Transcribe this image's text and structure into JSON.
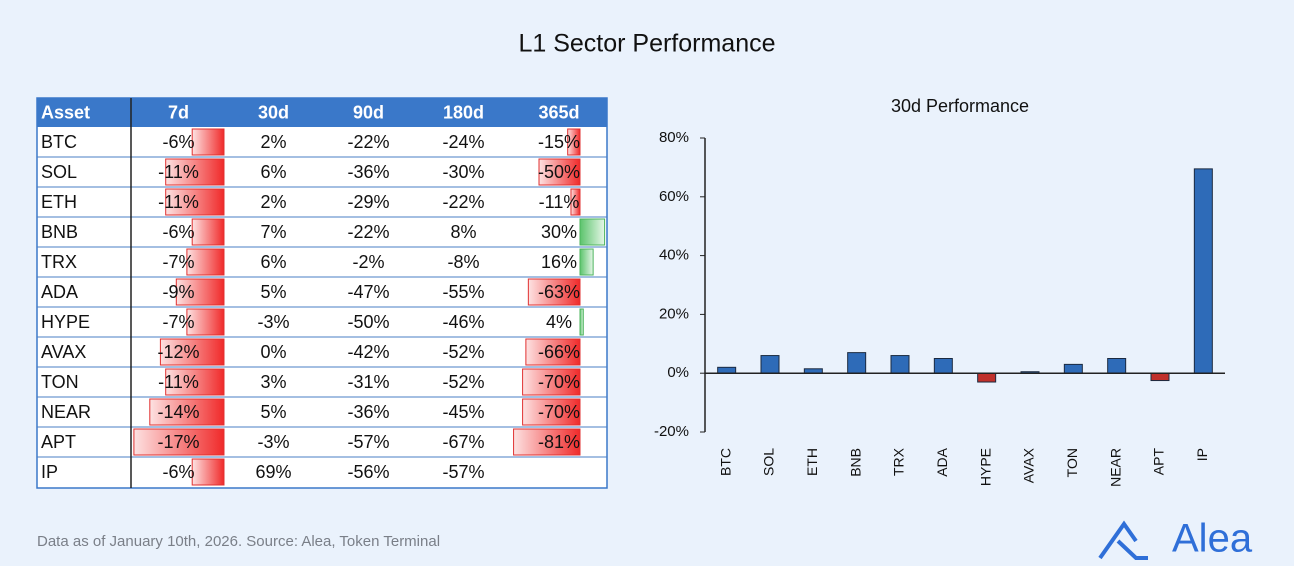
{
  "title": "L1 Sector Performance",
  "table": {
    "columns": [
      "Asset",
      "7d",
      "30d",
      "90d",
      "180d",
      "365d"
    ],
    "rows": [
      {
        "asset": "BTC",
        "values": [
          -6,
          2,
          -22,
          -24,
          -15
        ],
        "labels": [
          "-6%",
          "2%",
          "-22%",
          "-24%",
          "-15%"
        ]
      },
      {
        "asset": "SOL",
        "values": [
          -11,
          6,
          -36,
          -30,
          -50
        ],
        "labels": [
          "-11%",
          "6%",
          "-36%",
          "-30%",
          "-50%"
        ]
      },
      {
        "asset": "ETH",
        "values": [
          -11,
          2,
          -29,
          -22,
          -11
        ],
        "labels": [
          "-11%",
          "2%",
          "-29%",
          "-22%",
          "-11%"
        ]
      },
      {
        "asset": "BNB",
        "values": [
          -6,
          7,
          -22,
          8,
          30
        ],
        "labels": [
          "-6%",
          "7%",
          "-22%",
          "8%",
          "30%"
        ]
      },
      {
        "asset": "TRX",
        "values": [
          -7,
          6,
          -2,
          -8,
          16
        ],
        "labels": [
          "-7%",
          "6%",
          "-2%",
          "-8%",
          "16%"
        ]
      },
      {
        "asset": "ADA",
        "values": [
          -9,
          5,
          -47,
          -55,
          -63
        ],
        "labels": [
          "-9%",
          "5%",
          "-47%",
          "-55%",
          "-63%"
        ]
      },
      {
        "asset": "HYPE",
        "values": [
          -7,
          -3,
          -50,
          -46,
          4
        ],
        "labels": [
          "-7%",
          "-3%",
          "-50%",
          "-46%",
          "4%"
        ]
      },
      {
        "asset": "AVAX",
        "values": [
          -12,
          0,
          -42,
          -52,
          -66
        ],
        "labels": [
          "-12%",
          "0%",
          "-42%",
          "-52%",
          "-66%"
        ]
      },
      {
        "asset": "TON",
        "values": [
          -11,
          3,
          -31,
          -52,
          -70
        ],
        "labels": [
          "-11%",
          "3%",
          "-31%",
          "-52%",
          "-70%"
        ]
      },
      {
        "asset": "NEAR",
        "values": [
          -14,
          5,
          -36,
          -45,
          -70
        ],
        "labels": [
          "-14%",
          "5%",
          "-36%",
          "-45%",
          "-70%"
        ]
      },
      {
        "asset": "APT",
        "values": [
          -17,
          -3,
          -57,
          -67,
          -81
        ],
        "labels": [
          "-17%",
          "-3%",
          "-57%",
          "-67%",
          "-81%"
        ]
      },
      {
        "asset": "IP",
        "values": [
          -6,
          69,
          -56,
          -57,
          null
        ],
        "labels": [
          "-6%",
          "69%",
          "-56%",
          "-57%",
          null
        ]
      }
    ]
  },
  "chart_data": {
    "type": "bar",
    "title": "30d Performance",
    "categories": [
      "BTC",
      "SOL",
      "ETH",
      "BNB",
      "TRX",
      "ADA",
      "HYPE",
      "AVAX",
      "TON",
      "NEAR",
      "APT",
      "IP"
    ],
    "values": [
      2,
      6,
      1.5,
      7,
      6,
      5,
      -3,
      0.5,
      3,
      5,
      -2.5,
      69.5
    ],
    "color": "#2e6bb8",
    "negative_color": "#c0302b",
    "ylim": [
      -20,
      80
    ],
    "yticks": [
      {
        "value": -20,
        "label": "-20%"
      },
      {
        "value": 0,
        "label": "0%"
      },
      {
        "value": 20,
        "label": "20%"
      },
      {
        "value": 40,
        "label": "40%"
      },
      {
        "value": 60,
        "label": "60%"
      },
      {
        "value": 80,
        "label": "80%"
      }
    ]
  },
  "footer": "Data as of January 10th, 2026. Source: Alea, Token Terminal",
  "logo": "Alea"
}
